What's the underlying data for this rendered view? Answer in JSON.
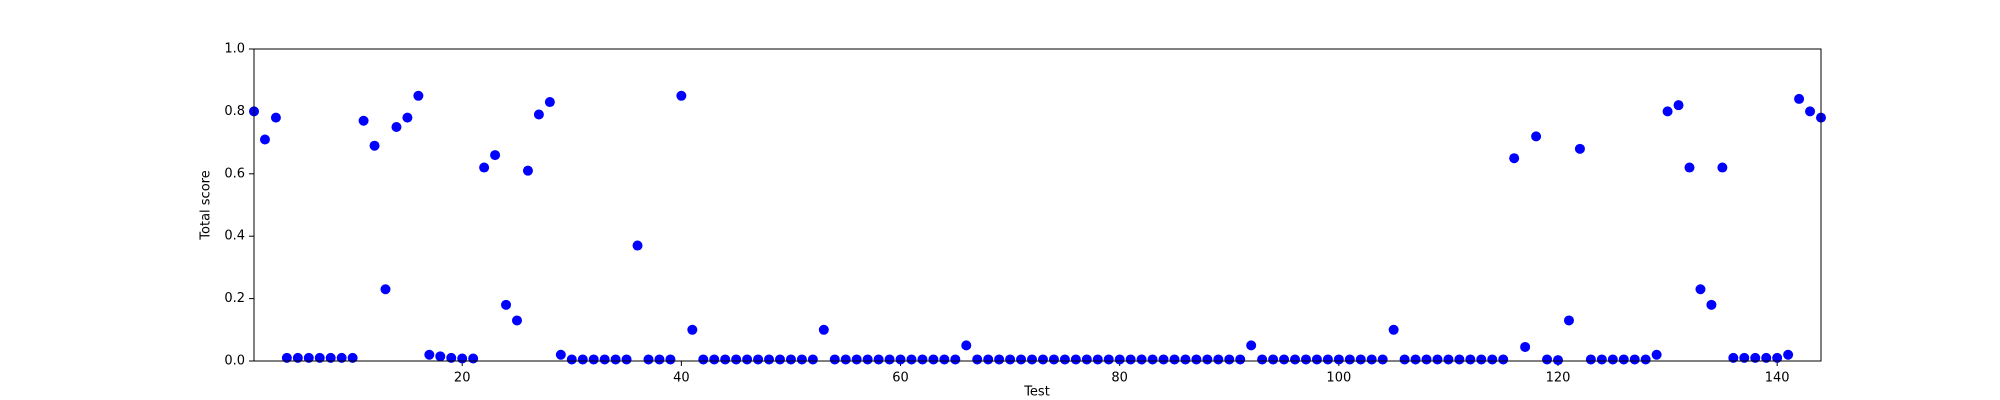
{
  "chart_data": {
    "type": "scatter",
    "xlabel": "Test",
    "ylabel": "Total score",
    "color": "#0000ff",
    "x": [
      1,
      2,
      3,
      4,
      5,
      6,
      7,
      8,
      9,
      10,
      11,
      12,
      13,
      14,
      15,
      16,
      17,
      18,
      19,
      20,
      21,
      22,
      23,
      24,
      25,
      26,
      27,
      28,
      29,
      30,
      31,
      32,
      33,
      34,
      35,
      36,
      37,
      38,
      39,
      40,
      41,
      42,
      43,
      44,
      45,
      46,
      47,
      48,
      49,
      50,
      51,
      52,
      53,
      54,
      55,
      56,
      57,
      58,
      59,
      60,
      61,
      62,
      63,
      64,
      65,
      66,
      67,
      68,
      69,
      70,
      71,
      72,
      73,
      74,
      75,
      76,
      77,
      78,
      79,
      80,
      81,
      82,
      83,
      84,
      85,
      86,
      87,
      88,
      89,
      90,
      91,
      92,
      93,
      94,
      95,
      96,
      97,
      98,
      99,
      100,
      101,
      102,
      103,
      104,
      105,
      106,
      107,
      108,
      109,
      110,
      111,
      112,
      113,
      114,
      115,
      116,
      117,
      118,
      119,
      120,
      121,
      122,
      123,
      124,
      125,
      126,
      127,
      128,
      129,
      130,
      131,
      132,
      133,
      134,
      135,
      136,
      137,
      138,
      139,
      140,
      141,
      142,
      143,
      144
    ],
    "values": [
      0.8,
      0.71,
      0.78,
      0.01,
      0.01,
      0.01,
      0.01,
      0.01,
      0.01,
      0.01,
      0.77,
      0.69,
      0.23,
      0.75,
      0.78,
      0.85,
      0.02,
      0.015,
      0.01,
      0.008,
      0.008,
      0.62,
      0.66,
      0.18,
      0.13,
      0.61,
      0.79,
      0.83,
      0.02,
      0.005,
      0.005,
      0.005,
      0.005,
      0.005,
      0.005,
      0.37,
      0.005,
      0.005,
      0.005,
      0.85,
      0.1,
      0.005,
      0.005,
      0.005,
      0.005,
      0.005,
      0.005,
      0.005,
      0.005,
      0.005,
      0.005,
      0.005,
      0.1,
      0.005,
      0.005,
      0.005,
      0.005,
      0.005,
      0.005,
      0.005,
      0.005,
      0.005,
      0.005,
      0.005,
      0.005,
      0.05,
      0.005,
      0.005,
      0.005,
      0.005,
      0.005,
      0.005,
      0.005,
      0.005,
      0.005,
      0.005,
      0.005,
      0.005,
      0.005,
      0.005,
      0.005,
      0.005,
      0.005,
      0.005,
      0.005,
      0.005,
      0.005,
      0.005,
      0.005,
      0.005,
      0.005,
      0.05,
      0.005,
      0.005,
      0.005,
      0.005,
      0.005,
      0.005,
      0.005,
      0.005,
      0.005,
      0.005,
      0.005,
      0.005,
      0.1,
      0.005,
      0.005,
      0.005,
      0.005,
      0.005,
      0.005,
      0.005,
      0.005,
      0.005,
      0.005,
      0.65,
      0.045,
      0.72,
      0.005,
      0.003,
      0.13,
      0.68,
      0.005,
      0.005,
      0.005,
      0.005,
      0.005,
      0.005,
      0.02,
      0.8,
      0.82,
      0.62,
      0.23,
      0.18,
      0.62,
      0.01,
      0.01,
      0.01,
      0.01,
      0.01,
      0.02,
      0.84,
      0.8,
      0.78
    ],
    "xlim": [
      1,
      144
    ],
    "ylim": [
      0,
      1
    ],
    "xticks": [
      20,
      40,
      60,
      80,
      100,
      120,
      140
    ],
    "yticks": [
      {
        "value": 0,
        "label": "0.0"
      },
      0.2,
      0.4,
      0.6,
      0.8,
      {
        "value": 1,
        "label": "1.0"
      }
    ]
  }
}
